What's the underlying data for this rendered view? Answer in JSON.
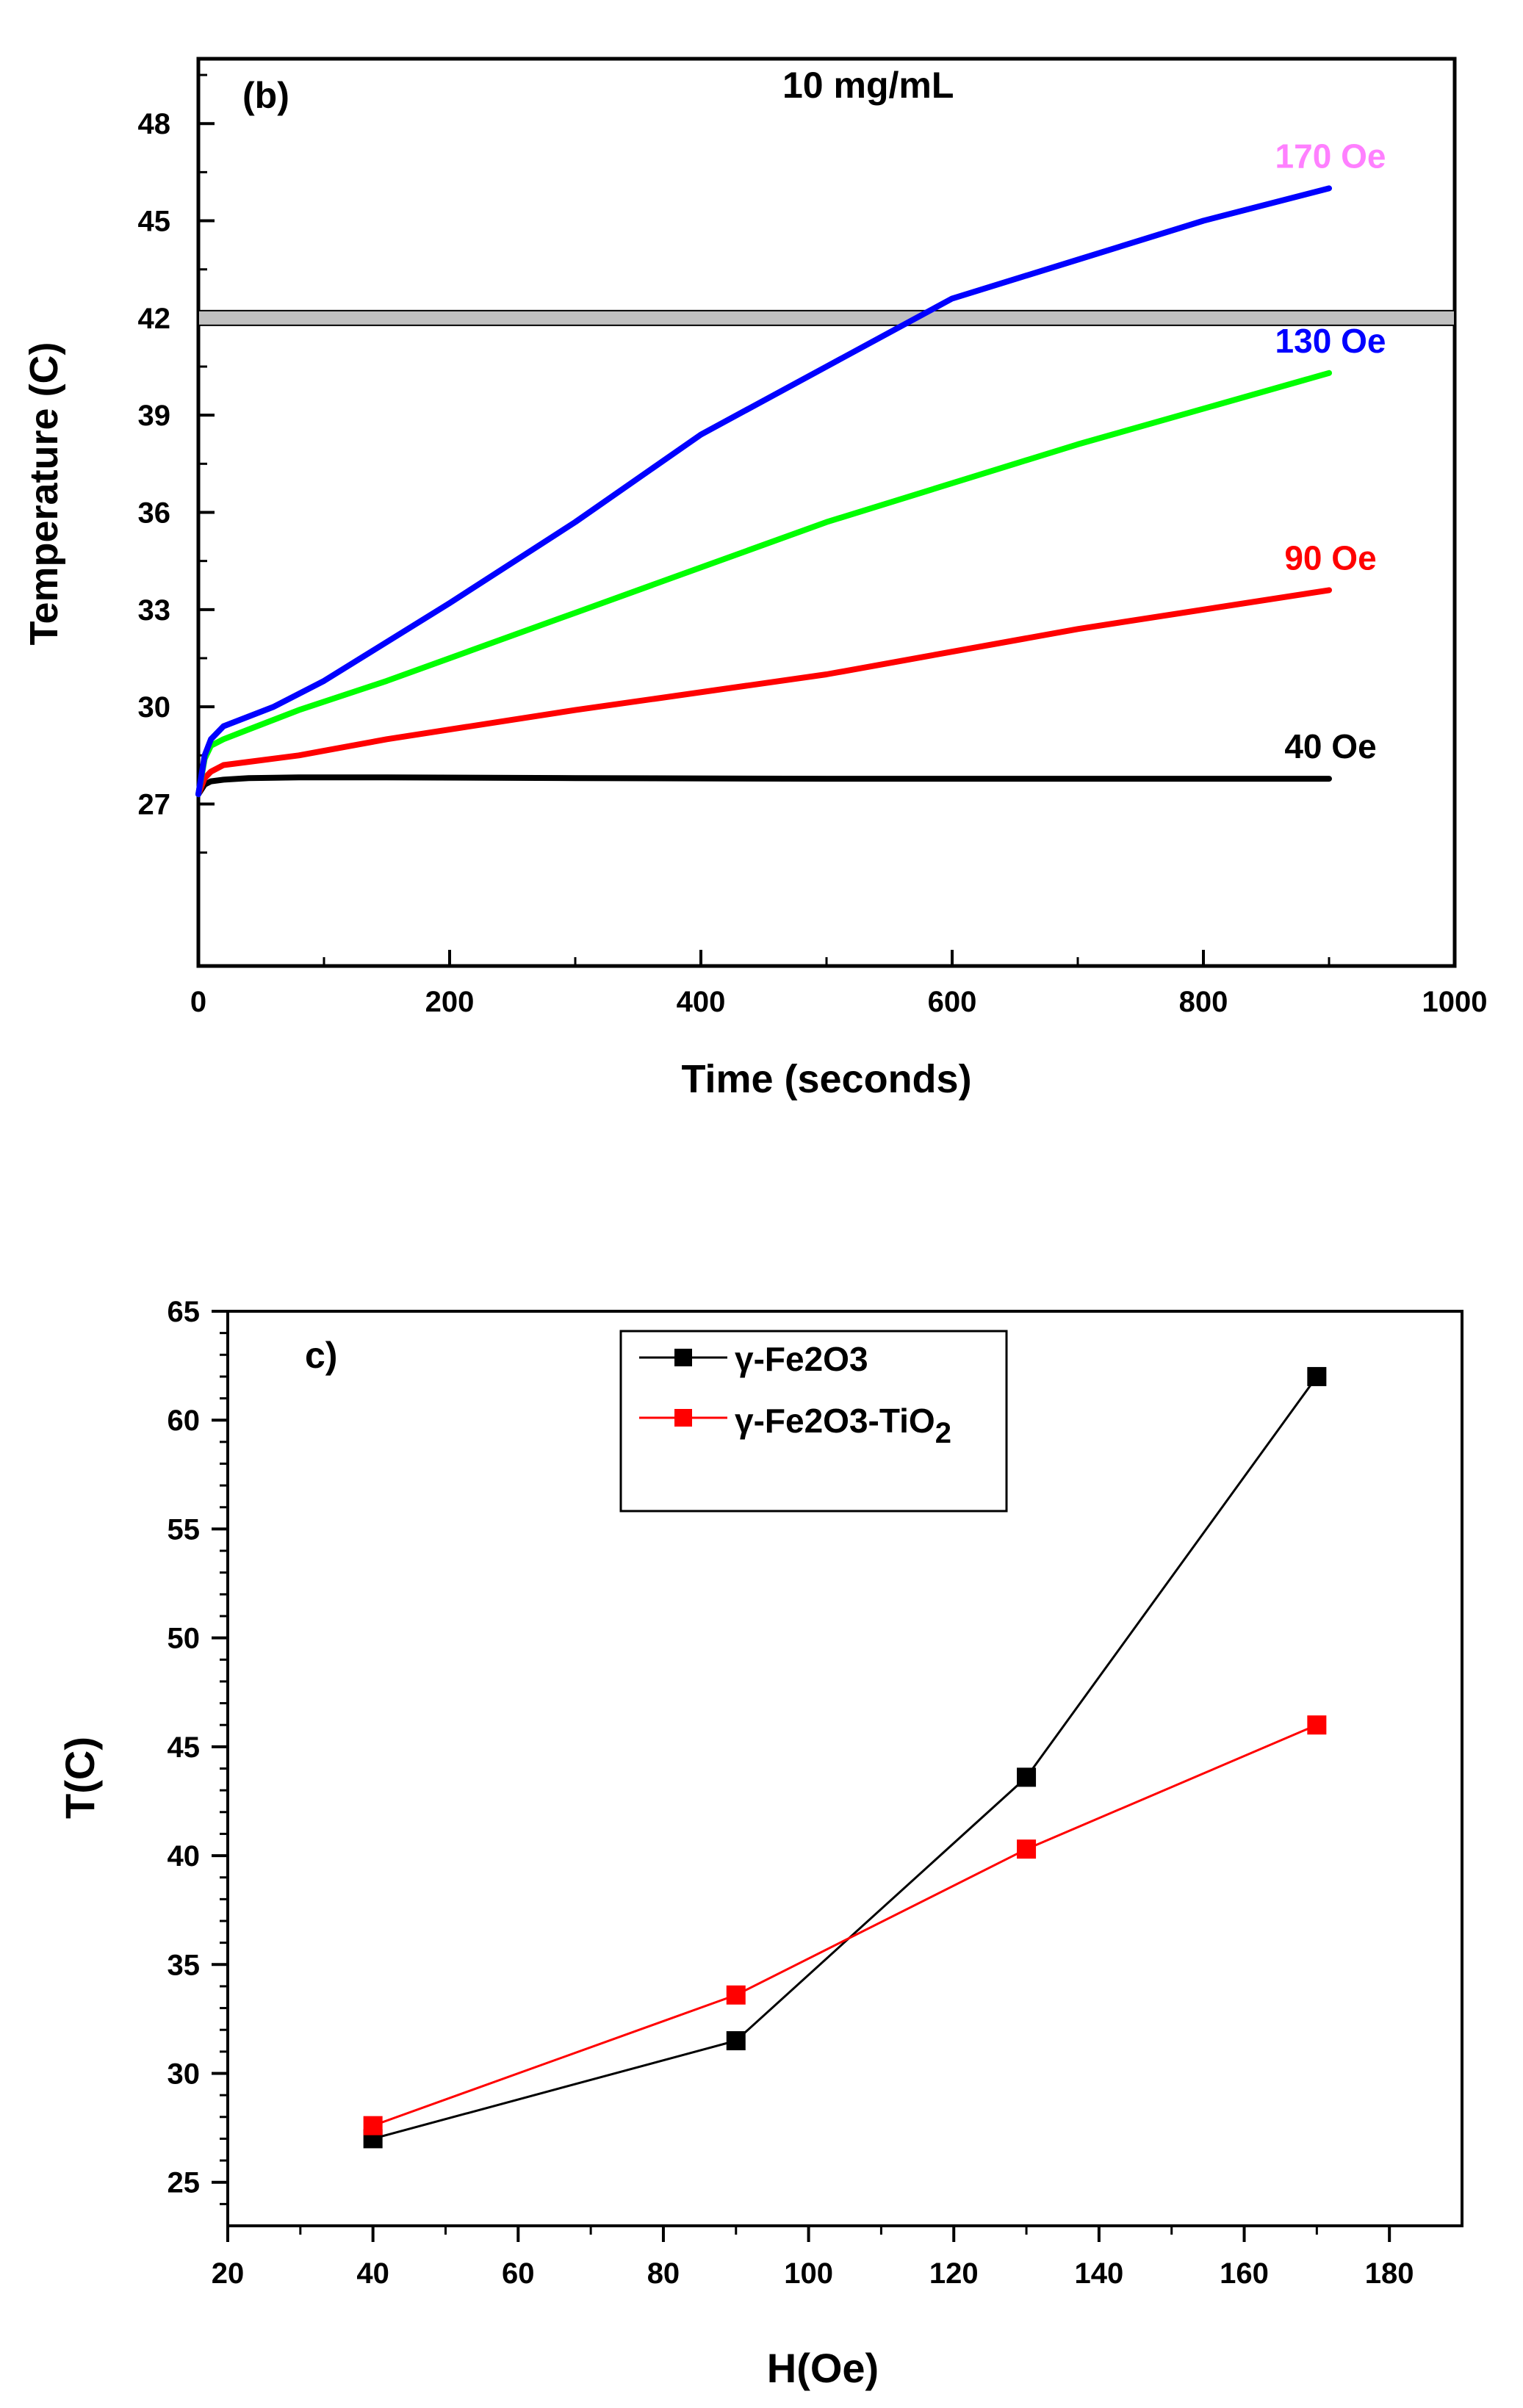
{
  "chart_data": [
    {
      "panel": "(b)",
      "type": "line",
      "title": "10 mg/mL",
      "xlabel": "Time (seconds)",
      "ylabel": "Temperature (C)",
      "xlim": [
        0,
        1000
      ],
      "ylim": [
        22,
        50
      ],
      "xticks": [
        0,
        200,
        400,
        600,
        800,
        1000
      ],
      "yticks": [
        27,
        30,
        33,
        36,
        39,
        42,
        45,
        48
      ],
      "hline": {
        "y": 42,
        "color": "#c0c0c0"
      },
      "series": [
        {
          "name": "40 Oe",
          "color": "#000000",
          "label_color": "#000000",
          "x": [
            0,
            5,
            10,
            20,
            40,
            80,
            150,
            300,
            500,
            700,
            900
          ],
          "y": [
            27.3,
            27.6,
            27.7,
            27.75,
            27.8,
            27.82,
            27.82,
            27.8,
            27.78,
            27.78,
            27.78
          ]
        },
        {
          "name": "90 Oe",
          "color": "#ff0000",
          "label_color": "#ff0000",
          "x": [
            0,
            5,
            10,
            20,
            40,
            80,
            150,
            300,
            500,
            700,
            900
          ],
          "y": [
            27.3,
            27.8,
            28.0,
            28.2,
            28.3,
            28.5,
            29.0,
            29.9,
            31.0,
            32.4,
            33.6
          ]
        },
        {
          "name": "130 Oe",
          "color": "#00ff00",
          "label_color": "#0000ff",
          "x": [
            0,
            5,
            10,
            20,
            40,
            80,
            150,
            300,
            500,
            700,
            900
          ],
          "y": [
            27.3,
            28.4,
            28.8,
            29.0,
            29.3,
            29.9,
            30.8,
            32.9,
            35.7,
            38.1,
            40.3
          ]
        },
        {
          "name": "170 Oe",
          "color": "#0000ff",
          "label_color": "#ff80ff",
          "x": [
            0,
            5,
            10,
            20,
            40,
            60,
            100,
            200,
            300,
            400,
            500,
            600,
            700,
            800,
            900
          ],
          "y": [
            27.3,
            28.5,
            29.0,
            29.4,
            29.7,
            30.0,
            30.8,
            33.2,
            35.7,
            38.4,
            40.5,
            42.6,
            43.8,
            45.0,
            46.0
          ]
        }
      ]
    },
    {
      "panel": "c)",
      "type": "line",
      "xlabel": "H(Oe)",
      "ylabel": "T(C)",
      "xlim": [
        20,
        190
      ],
      "ylim": [
        23,
        65
      ],
      "xticks": [
        20,
        40,
        60,
        80,
        100,
        120,
        140,
        160,
        180
      ],
      "yticks": [
        25,
        30,
        35,
        40,
        45,
        50,
        55,
        60,
        65
      ],
      "legend_position": "top-left",
      "series": [
        {
          "name": "γ-Fe2O3",
          "color": "#000000",
          "x": [
            40,
            90,
            130,
            170
          ],
          "y": [
            27.0,
            31.5,
            43.6,
            62.0
          ]
        },
        {
          "name": "γ-Fe2O3-TiO",
          "subscript": "2",
          "color": "#ff0000",
          "x": [
            40,
            90,
            130,
            170
          ],
          "y": [
            27.6,
            33.6,
            40.3,
            46.0
          ]
        }
      ]
    }
  ]
}
